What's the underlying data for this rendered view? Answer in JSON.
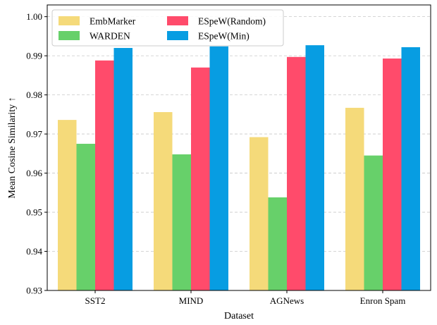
{
  "chart_data": {
    "type": "bar",
    "xlabel": "Dataset",
    "ylabel": "Mean Cosine Similarity ↑",
    "categories": [
      "SST2",
      "MIND",
      "AGNews",
      "Enron Spam"
    ],
    "ylim": [
      0.93,
      1.003
    ],
    "yticks": [
      "0.93",
      "0.94",
      "0.95",
      "0.96",
      "0.97",
      "0.98",
      "0.99",
      "1.00"
    ],
    "grid": "horizontal dashed",
    "legend_position": "top-left",
    "series": [
      {
        "name": "EmbMarker",
        "color": "#F5DA7A",
        "values": [
          0.9736,
          0.9756,
          0.9692,
          0.9767
        ]
      },
      {
        "name": "WARDEN",
        "color": "#67D06A",
        "values": [
          0.9675,
          0.9648,
          0.9538,
          0.9645
        ]
      },
      {
        "name": "ESpeW(Random)",
        "color": "#FF4B6B",
        "values": [
          0.9888,
          0.987,
          0.9897,
          0.9893
        ]
      },
      {
        "name": "ESpeW(Min)",
        "color": "#079DE2",
        "values": [
          0.992,
          0.9924,
          0.9927,
          0.9922
        ]
      }
    ]
  }
}
